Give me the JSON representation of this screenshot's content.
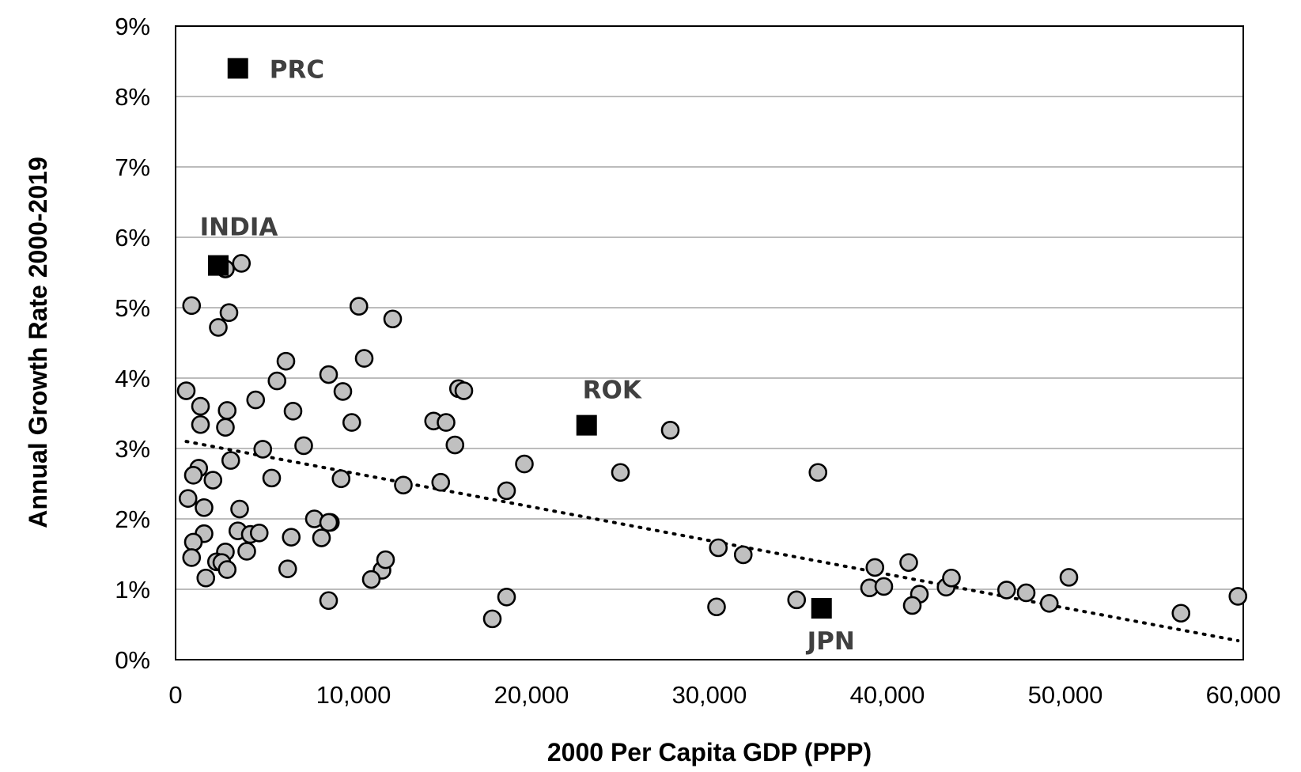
{
  "chart_data": {
    "type": "scatter",
    "title": "",
    "xlabel": "2000 Per Capita GDP (PPP)",
    "ylabel": "Annual Growth Rate 2000-2019",
    "xlim": [
      0,
      60000
    ],
    "ylim": [
      0,
      9
    ],
    "x_ticks": [
      0,
      10000,
      20000,
      30000,
      40000,
      50000,
      60000
    ],
    "x_tick_labels": [
      "0",
      "10,000",
      "20,000",
      "30,000",
      "40,000",
      "50,000",
      "60,000"
    ],
    "y_ticks": [
      0,
      1,
      2,
      3,
      4,
      5,
      6,
      7,
      8,
      9
    ],
    "y_tick_labels": [
      "0%",
      "1%",
      "2%",
      "3%",
      "4%",
      "5%",
      "6%",
      "7%",
      "8%",
      "9%"
    ],
    "grid": "horizontal",
    "legend": "none",
    "colors": {
      "points": "#c0c0c0",
      "highlight": "#000000",
      "callout_text": "#404040",
      "gridline": "#a6a6a6"
    },
    "highlighted": [
      {
        "label": "PRC",
        "x": 3500,
        "y": 8.4
      },
      {
        "label": "INDIA",
        "x": 2400,
        "y": 5.6
      },
      {
        "label": "ROK",
        "x": 23100,
        "y": 3.33
      },
      {
        "label": "JPN",
        "x": 36300,
        "y": 0.73
      }
    ],
    "points": [
      [
        2800,
        5.55
      ],
      [
        3700,
        5.63
      ],
      [
        900,
        5.03
      ],
      [
        3000,
        4.93
      ],
      [
        2400,
        4.72
      ],
      [
        10300,
        5.02
      ],
      [
        12200,
        4.84
      ],
      [
        10600,
        4.28
      ],
      [
        6200,
        4.24
      ],
      [
        8600,
        4.05
      ],
      [
        5700,
        3.96
      ],
      [
        9400,
        3.81
      ],
      [
        4500,
        3.69
      ],
      [
        600,
        3.82
      ],
      [
        1400,
        3.6
      ],
      [
        2900,
        3.54
      ],
      [
        6600,
        3.53
      ],
      [
        9900,
        3.37
      ],
      [
        1400,
        3.34
      ],
      [
        2800,
        3.3
      ],
      [
        7200,
        3.04
      ],
      [
        4900,
        2.99
      ],
      [
        3100,
        2.83
      ],
      [
        1300,
        2.72
      ],
      [
        1000,
        2.62
      ],
      [
        2100,
        2.55
      ],
      [
        5400,
        2.58
      ],
      [
        9300,
        2.57
      ],
      [
        700,
        2.29
      ],
      [
        1600,
        2.16
      ],
      [
        3600,
        2.14
      ],
      [
        7800,
        2.0
      ],
      [
        8700,
        1.95
      ],
      [
        8600,
        1.95
      ],
      [
        1600,
        1.79
      ],
      [
        3500,
        1.83
      ],
      [
        4200,
        1.78
      ],
      [
        4700,
        1.8
      ],
      [
        6500,
        1.74
      ],
      [
        8200,
        1.73
      ],
      [
        1000,
        1.67
      ],
      [
        900,
        1.45
      ],
      [
        2800,
        1.53
      ],
      [
        4000,
        1.54
      ],
      [
        2300,
        1.39
      ],
      [
        2600,
        1.38
      ],
      [
        2900,
        1.28
      ],
      [
        6300,
        1.29
      ],
      [
        11600,
        1.27
      ],
      [
        11800,
        1.42
      ],
      [
        1700,
        1.16
      ],
      [
        11000,
        1.14
      ],
      [
        8600,
        0.84
      ],
      [
        14500,
        3.39
      ],
      [
        15200,
        3.37
      ],
      [
        15900,
        3.85
      ],
      [
        16200,
        3.82
      ],
      [
        15700,
        3.05
      ],
      [
        14900,
        2.52
      ],
      [
        12800,
        2.48
      ],
      [
        18600,
        2.4
      ],
      [
        19600,
        2.78
      ],
      [
        25000,
        2.66
      ],
      [
        27800,
        3.26
      ],
      [
        18600,
        0.89
      ],
      [
        17800,
        0.58
      ],
      [
        36100,
        2.66
      ],
      [
        30500,
        1.59
      ],
      [
        31900,
        1.49
      ],
      [
        30400,
        0.75
      ],
      [
        34900,
        0.85
      ],
      [
        39300,
        1.31
      ],
      [
        41200,
        1.38
      ],
      [
        39000,
        1.02
      ],
      [
        39800,
        1.04
      ],
      [
        41800,
        0.93
      ],
      [
        41400,
        0.77
      ],
      [
        43300,
        1.03
      ],
      [
        43600,
        1.16
      ],
      [
        46700,
        0.99
      ],
      [
        47800,
        0.95
      ],
      [
        49100,
        0.8
      ],
      [
        50200,
        1.17
      ],
      [
        56500,
        0.66
      ],
      [
        59700,
        0.9
      ]
    ],
    "trendline": {
      "style": "dotted",
      "from": [
        600,
        3.1
      ],
      "to": [
        59700,
        0.27
      ]
    }
  }
}
